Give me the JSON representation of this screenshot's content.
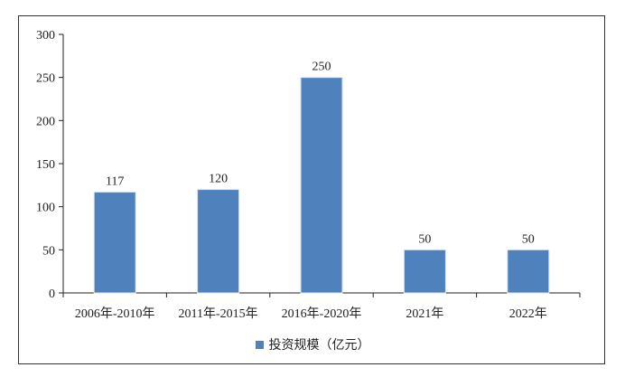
{
  "chart_data": {
    "type": "bar",
    "categories": [
      "2006年-2010年",
      "2011年-2015年",
      "2016年-2020年",
      "2021年",
      "2022年"
    ],
    "series": [
      {
        "name": "投资规模（亿元）",
        "values": [
          117,
          120,
          250,
          50,
          50
        ],
        "color": "#4f81bd"
      }
    ],
    "data_labels": [
      "117",
      "120",
      "250",
      "50",
      "50"
    ],
    "ylim": [
      0,
      300
    ],
    "yticks": [
      0,
      50,
      100,
      150,
      200,
      250,
      300
    ],
    "title": "",
    "xlabel": "",
    "ylabel": "",
    "grid": false,
    "legend_position": "bottom"
  }
}
